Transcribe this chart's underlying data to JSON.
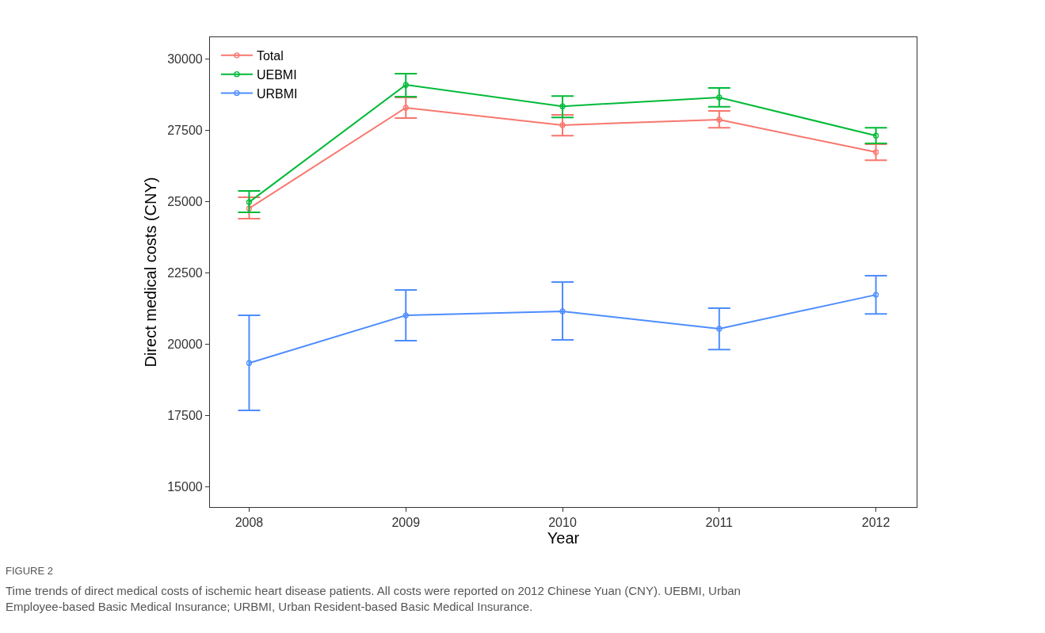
{
  "chart_data": {
    "type": "line",
    "xlabel": "Year",
    "ylabel": "Direct medical costs (CNY)",
    "x": [
      2008,
      2009,
      2010,
      2011,
      2012
    ],
    "xlim": [
      2007.75,
      2012.26
    ],
    "xticks": [
      2008,
      2009,
      2010,
      2011,
      2012
    ],
    "ylim": [
      14280,
      30750
    ],
    "yticks": [
      15000,
      17500,
      20000,
      22500,
      25000,
      27500,
      30000
    ],
    "legend": "top left",
    "marker": "circle",
    "line_style": "solid",
    "series": [
      {
        "name": "Total",
        "color": "#f8766d",
        "values": [
          24750,
          28280,
          27670,
          27860,
          26720
        ],
        "errors": [
          [
            24390,
            25140
          ],
          [
            27920,
            28640
          ],
          [
            27300,
            28030
          ],
          [
            27580,
            28170
          ],
          [
            26440,
            27000
          ]
        ]
      },
      {
        "name": "UEBMI",
        "color": "#00ba38",
        "values": [
          24970,
          29080,
          28330,
          28640,
          27300
        ],
        "errors": [
          [
            24610,
            25360
          ],
          [
            28670,
            29470
          ],
          [
            27940,
            28690
          ],
          [
            28310,
            28970
          ],
          [
            27030,
            27580
          ]
        ]
      },
      {
        "name": "URBMI",
        "color": "#4d8dff",
        "values": [
          19330,
          21000,
          21140,
          20530,
          21720
        ],
        "errors": [
          [
            17670,
            21000
          ],
          [
            20110,
            21890
          ],
          [
            20140,
            22170
          ],
          [
            19800,
            21250
          ],
          [
            21050,
            22390
          ]
        ]
      }
    ],
    "annotations": [
      "FIGURE 2",
      "Time trends of direct medical costs of ischemic heart disease patients. All costs were reported on 2012 Chinese Yuan (CNY). UEBMI, Urban Employee-based Basic Medical Insurance; URBMI, Urban Resident-based Basic Medical Insurance."
    ]
  }
}
